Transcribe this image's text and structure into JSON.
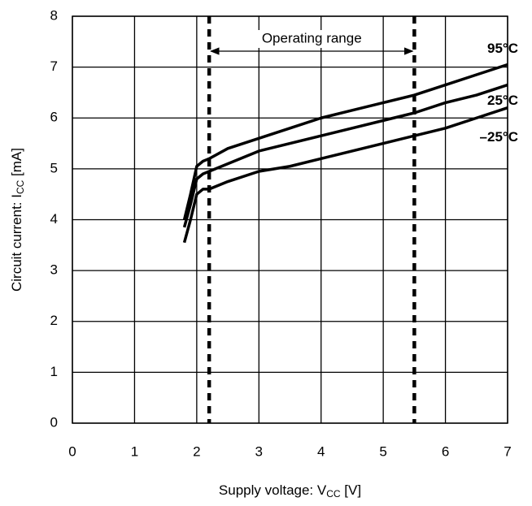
{
  "chart_data": {
    "type": "line",
    "x_label_parts": [
      "Supply voltage: V",
      "CC",
      " [V]"
    ],
    "y_label_parts": [
      "Circuit current: I",
      "CC",
      " [mA]"
    ],
    "annotation": "Operating range",
    "operating_range": [
      2.2,
      5.5
    ],
    "x": [
      1.8,
      1.9,
      2.0,
      2.1,
      2.2,
      2.5,
      3,
      3.5,
      4,
      4.5,
      5,
      5.5,
      6,
      6.5,
      7
    ],
    "series": [
      {
        "name": "95°C",
        "color": "#000000",
        "values": [
          4.0,
          4.5,
          5.05,
          5.15,
          5.2,
          5.4,
          5.6,
          5.8,
          6.0,
          6.15,
          6.3,
          6.45,
          6.65,
          6.85,
          7.05
        ]
      },
      {
        "name": "25°C",
        "color": "#000000",
        "values": [
          3.85,
          4.3,
          4.8,
          4.9,
          4.95,
          5.1,
          5.35,
          5.5,
          5.65,
          5.8,
          5.95,
          6.1,
          6.3,
          6.45,
          6.65
        ]
      },
      {
        "name": "–25°C",
        "color": "#000000",
        "values": [
          3.55,
          4.0,
          4.5,
          4.6,
          4.6,
          4.75,
          4.95,
          5.05,
          5.2,
          5.35,
          5.5,
          5.65,
          5.8,
          6.0,
          6.2
        ]
      }
    ],
    "xlim": [
      0,
      7
    ],
    "xticks": [
      0,
      1,
      2,
      3,
      4,
      5,
      6,
      7
    ],
    "ylim": [
      0,
      8
    ],
    "yticks": [
      0,
      1,
      2,
      3,
      4,
      5,
      6,
      7,
      8
    ],
    "grid": true
  }
}
